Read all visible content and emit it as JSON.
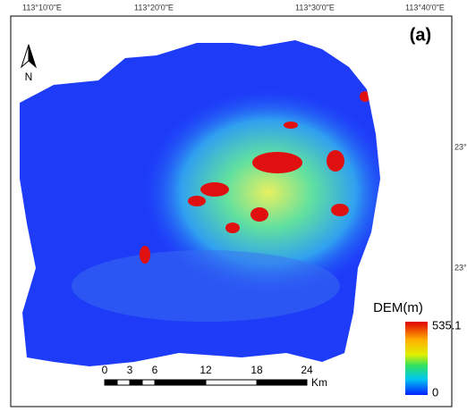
{
  "map": {
    "lon_labels": [
      "113°10'0\"E",
      "113°20'0\"E",
      "113°30'0\"E",
      "113°40'0\"E"
    ],
    "lat_labels": [
      "23°",
      "23°"
    ],
    "panel_label": "(a)",
    "north": "N",
    "legend": {
      "title": "DEM(m)",
      "max": "535.1",
      "min": "0"
    },
    "scale_bar": {
      "labels": [
        "0",
        "3",
        "6",
        "12",
        "18",
        "24"
      ],
      "unit": "Km"
    }
  }
}
